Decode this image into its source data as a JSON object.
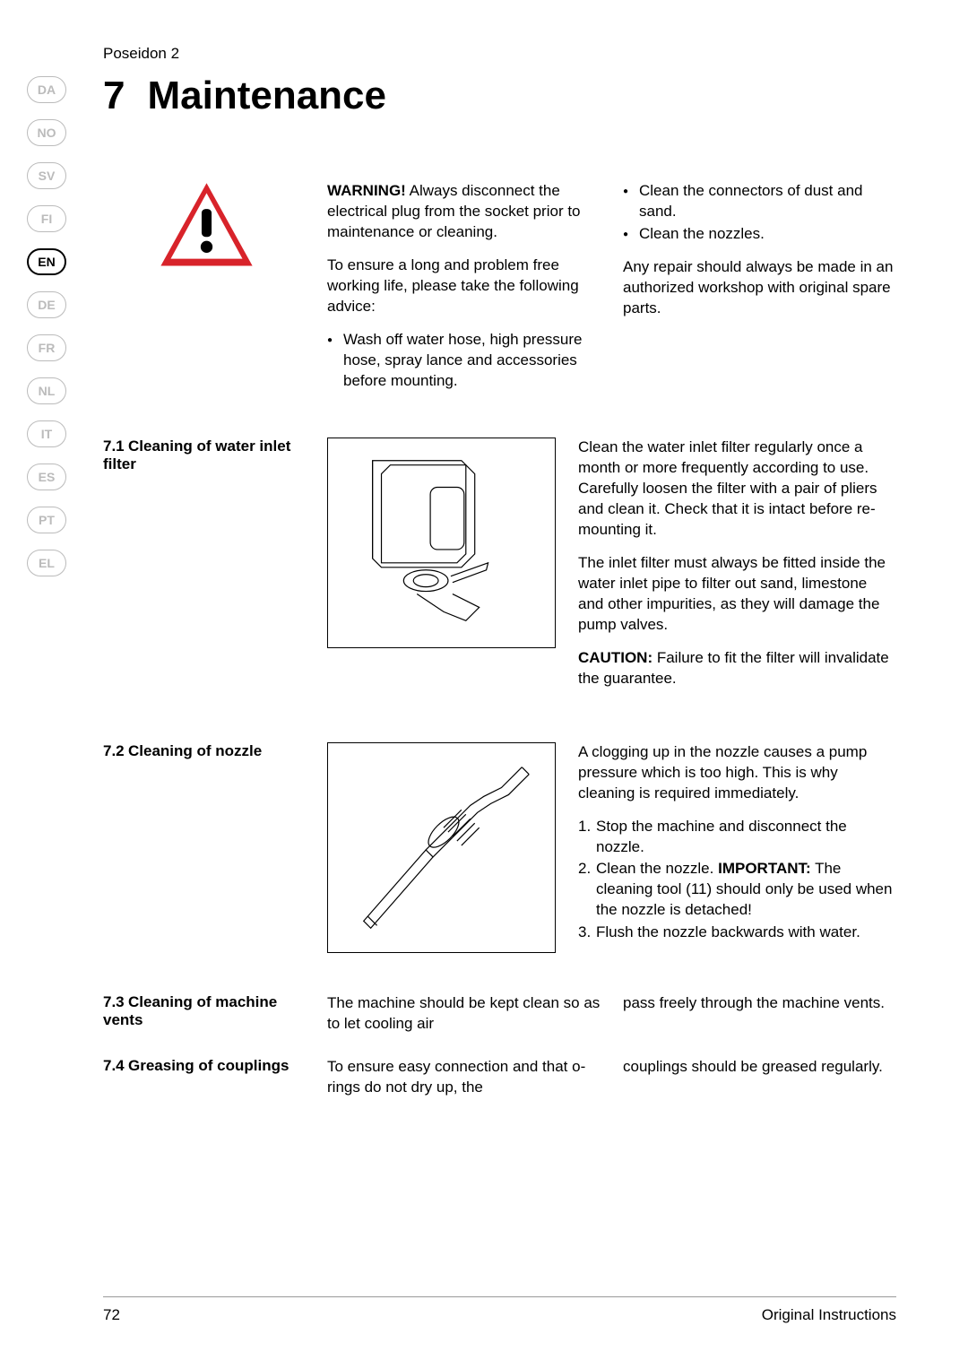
{
  "header": {
    "product": "Poseidon 2",
    "chapter_num": "7",
    "chapter_title": "Maintenance"
  },
  "languages": [
    {
      "code": "DA",
      "active": false
    },
    {
      "code": "NO",
      "active": false
    },
    {
      "code": "SV",
      "active": false
    },
    {
      "code": "FI",
      "active": false
    },
    {
      "code": "EN",
      "active": true
    },
    {
      "code": "DE",
      "active": false
    },
    {
      "code": "FR",
      "active": false
    },
    {
      "code": "NL",
      "active": false
    },
    {
      "code": "IT",
      "active": false
    },
    {
      "code": "ES",
      "active": false
    },
    {
      "code": "PT",
      "active": false
    },
    {
      "code": "EL",
      "active": false
    }
  ],
  "intro": {
    "warning_label": "WARNING!",
    "warning_text": " Always disconnect the electrical plug from the socket prior to maintenance or cleaning.",
    "advice_text": "To ensure a long and problem free working life, please take the following advice:",
    "bullet1": "Wash off water hose, high pressure hose, spray lance and accessories before mounting.",
    "bullet2": "Clean the connectors of dust and sand.",
    "bullet3": "Clean the nozzles.",
    "repair_text": "Any repair should always be made in an authorized workshop with original spare parts."
  },
  "section71": {
    "num": "7.1",
    "title": "Cleaning of water inlet filter",
    "para1": "Clean the water inlet filter regularly once a month or more frequently according to use. Carefully loosen the filter with a pair of pliers and clean it. Check that it is intact before re-mounting it.",
    "para2": "The inlet filter must always be fitted inside the water inlet pipe to filter out sand, limestone and other impurities, as they will damage the pump valves.",
    "caution_label": "CAUTION:",
    "caution_text": " Failure to fit the filter will invalidate the guarantee."
  },
  "section72": {
    "num": "7.2",
    "title": "Cleaning of nozzle",
    "para1": "A clogging up in the nozzle causes a pump pressure which is too high. This is why cleaning is required immediately.",
    "step1": "Stop the machine and disconnect the nozzle.",
    "step2a": "Clean the nozzle. ",
    "step2_important": "IMPORTANT:",
    "step2b": " The cleaning tool (11) should only be used when the nozzle is detached!",
    "step3": "Flush the nozzle backwards with water."
  },
  "section73": {
    "num": "7.3",
    "title": "Cleaning of machine vents",
    "text1": "The machine should be kept clean so as to let cooling air",
    "text2": "pass freely through the machine vents."
  },
  "section74": {
    "num": "7.4",
    "title": "Greasing of couplings",
    "text1": "To ensure easy connection and that o-rings do not dry up, the",
    "text2": "couplings should be greased regularly."
  },
  "footer": {
    "page": "72",
    "label": "Original Instructions"
  },
  "colors": {
    "warning_red": "#d8232a",
    "inactive_gray": "#bbbbbb",
    "text": "#000000",
    "border": "#999999"
  }
}
